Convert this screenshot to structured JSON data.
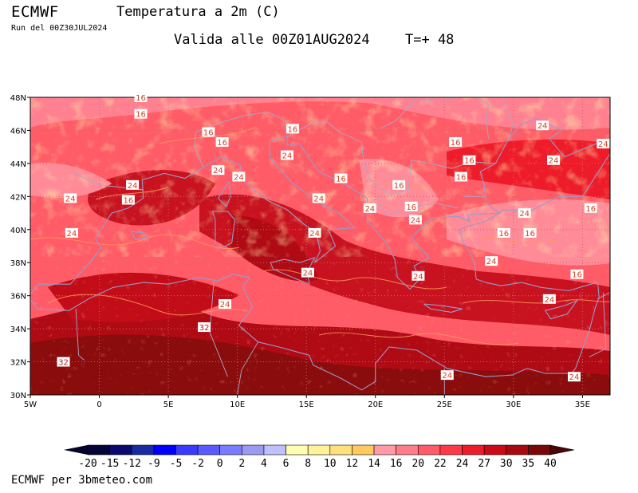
{
  "header": {
    "model": "ECMWF",
    "product": "Temperatura a 2m (C)",
    "run": "Run del 00Z30JUL2024",
    "valid": "Valida alle 00Z01AUG2024",
    "step": "T=+ 48"
  },
  "map": {
    "lat_labels": [
      "48N",
      "46N",
      "44N",
      "42N",
      "40N",
      "38N",
      "36N",
      "34N",
      "32N",
      "30N"
    ],
    "lon_labels": [
      "5W",
      "0",
      "5E",
      "10E",
      "15E",
      "20E",
      "25E",
      "30E",
      "35E"
    ],
    "lat_range": [
      30,
      48
    ],
    "lon_range": [
      -5,
      37
    ],
    "grid": "dotted",
    "contour_labels": [
      {
        "text": "16",
        "lon": 3.0,
        "lat": 48.0
      },
      {
        "text": "16",
        "lon": 3.0,
        "lat": 47.0
      },
      {
        "text": "16",
        "lon": 7.9,
        "lat": 45.9
      },
      {
        "text": "16",
        "lon": 8.9,
        "lat": 45.3
      },
      {
        "text": "16",
        "lon": 14.0,
        "lat": 46.1
      },
      {
        "text": "24",
        "lon": 13.6,
        "lat": 44.5
      },
      {
        "text": "24",
        "lon": 8.6,
        "lat": 43.6
      },
      {
        "text": "24",
        "lon": 10.1,
        "lat": 43.2
      },
      {
        "text": "24",
        "lon": 2.4,
        "lat": 42.7
      },
      {
        "text": "16",
        "lon": 2.1,
        "lat": 41.8
      },
      {
        "text": "24",
        "lon": -2.1,
        "lat": 41.9
      },
      {
        "text": "24",
        "lon": -2.0,
        "lat": 39.8
      },
      {
        "text": "16",
        "lon": 17.5,
        "lat": 43.1
      },
      {
        "text": "24",
        "lon": 15.9,
        "lat": 41.9
      },
      {
        "text": "24",
        "lon": 15.6,
        "lat": 39.8
      },
      {
        "text": "24",
        "lon": 15.1,
        "lat": 37.4
      },
      {
        "text": "24",
        "lon": 19.6,
        "lat": 41.3
      },
      {
        "text": "16",
        "lon": 21.7,
        "lat": 42.7
      },
      {
        "text": "16",
        "lon": 22.6,
        "lat": 41.4
      },
      {
        "text": "16",
        "lon": 25.8,
        "lat": 45.3
      },
      {
        "text": "16",
        "lon": 26.2,
        "lat": 43.2
      },
      {
        "text": "16",
        "lon": 26.8,
        "lat": 44.2
      },
      {
        "text": "24",
        "lon": 22.9,
        "lat": 40.6
      },
      {
        "text": "24",
        "lon": 28.4,
        "lat": 38.1
      },
      {
        "text": "24",
        "lon": 23.1,
        "lat": 37.2
      },
      {
        "text": "24",
        "lon": 32.1,
        "lat": 46.3
      },
      {
        "text": "24",
        "lon": 36.5,
        "lat": 45.2
      },
      {
        "text": "24",
        "lon": 32.9,
        "lat": 44.2
      },
      {
        "text": "24",
        "lon": 30.8,
        "lat": 41.0
      },
      {
        "text": "16",
        "lon": 29.3,
        "lat": 39.8
      },
      {
        "text": "16",
        "lon": 31.2,
        "lat": 39.8
      },
      {
        "text": "16",
        "lon": 35.6,
        "lat": 41.3
      },
      {
        "text": "16",
        "lon": 34.6,
        "lat": 37.3
      },
      {
        "text": "24",
        "lon": 32.6,
        "lat": 35.8
      },
      {
        "text": "24",
        "lon": 9.1,
        "lat": 35.5
      },
      {
        "text": "32",
        "lon": 7.6,
        "lat": 34.1
      },
      {
        "text": "32",
        "lon": -2.6,
        "lat": 32.0
      },
      {
        "text": "24",
        "lon": 25.2,
        "lat": 31.2
      },
      {
        "text": "24",
        "lon": 34.4,
        "lat": 31.1
      }
    ],
    "coastlines": [
      [
        [
          -5,
          36.1
        ],
        [
          -4.4,
          36.7
        ],
        [
          -2.1,
          36.7
        ],
        [
          -0.5,
          38.2
        ],
        [
          0.1,
          38.9
        ],
        [
          -0.3,
          39.5
        ],
        [
          0.9,
          41.0
        ],
        [
          2.1,
          41.3
        ],
        [
          3.2,
          41.9
        ],
        [
          3.1,
          43.0
        ],
        [
          4.7,
          43.4
        ],
        [
          6.2,
          43.1
        ],
        [
          7.4,
          43.7
        ],
        [
          8.8,
          44.4
        ],
        [
          10.2,
          43.9
        ],
        [
          10.5,
          42.9
        ],
        [
          12.1,
          41.8
        ],
        [
          13.6,
          41.2
        ],
        [
          15.0,
          40.2
        ],
        [
          15.7,
          39.9
        ],
        [
          16.0,
          38.7
        ],
        [
          15.6,
          38.0
        ],
        [
          16.2,
          38.4
        ],
        [
          17.1,
          39.0
        ],
        [
          16.6,
          40.0
        ],
        [
          18.5,
          40.1
        ],
        [
          17.5,
          40.9
        ],
        [
          16.0,
          41.6
        ],
        [
          14.0,
          42.8
        ],
        [
          12.4,
          44.3
        ],
        [
          12.3,
          45.3
        ],
        [
          13.6,
          45.7
        ],
        [
          13.6,
          45.1
        ],
        [
          14.5,
          45.2
        ],
        [
          15.9,
          43.5
        ],
        [
          17.9,
          42.7
        ],
        [
          19.4,
          41.9
        ],
        [
          19.4,
          40.5
        ],
        [
          20.7,
          39.3
        ],
        [
          21.4,
          38.2
        ],
        [
          21.6,
          37.1
        ],
        [
          22.5,
          36.4
        ],
        [
          23.2,
          37.0
        ],
        [
          22.8,
          37.8
        ],
        [
          23.9,
          38.3
        ],
        [
          22.6,
          39.5
        ],
        [
          23.4,
          40.2
        ],
        [
          24.0,
          40.7
        ],
        [
          26.0,
          40.8
        ],
        [
          26.8,
          40.5
        ],
        [
          26.7,
          40.9
        ],
        [
          29.0,
          41.0
        ],
        [
          28.0,
          41.6
        ],
        [
          27.9,
          42.7
        ],
        [
          27.6,
          43.5
        ],
        [
          28.7,
          44.0
        ],
        [
          29.6,
          45.4
        ],
        [
          30.6,
          46.4
        ],
        [
          31.7,
          46.7
        ],
        [
          33.5,
          46.0
        ],
        [
          32.6,
          45.5
        ],
        [
          33.7,
          44.4
        ],
        [
          35.4,
          45.0
        ],
        [
          36.3,
          45.3
        ],
        [
          37.0,
          45.5
        ]
      ],
      [
        [
          37.0,
          44.6
        ],
        [
          35.0,
          42.0
        ],
        [
          33.3,
          42.0
        ],
        [
          31.2,
          41.1
        ],
        [
          29.2,
          41.2
        ],
        [
          29.0,
          41.0
        ],
        [
          28.0,
          40.5
        ],
        [
          26.7,
          40.2
        ],
        [
          26.1,
          40.0
        ],
        [
          26.3,
          39.3
        ],
        [
          26.8,
          38.7
        ],
        [
          27.2,
          37.9
        ],
        [
          27.3,
          37.0
        ],
        [
          28.0,
          36.8
        ],
        [
          29.1,
          36.6
        ],
        [
          30.6,
          36.8
        ],
        [
          32.0,
          36.5
        ],
        [
          34.0,
          36.3
        ],
        [
          35.2,
          36.6
        ],
        [
          36.1,
          36.8
        ],
        [
          36.2,
          35.9
        ],
        [
          35.9,
          35.2
        ],
        [
          35.5,
          33.9
        ],
        [
          35.1,
          33.0
        ],
        [
          34.5,
          31.6
        ],
        [
          34.2,
          31.3
        ],
        [
          32.3,
          31.3
        ],
        [
          31.0,
          31.6
        ],
        [
          29.9,
          31.2
        ],
        [
          28.0,
          31.1
        ],
        [
          25.2,
          31.6
        ],
        [
          23.0,
          32.7
        ],
        [
          21.0,
          32.9
        ],
        [
          20.0,
          31.9
        ],
        [
          20.0,
          30.8
        ],
        [
          19.0,
          30.3
        ],
        [
          17.5,
          31.0
        ],
        [
          15.5,
          31.8
        ],
        [
          15.2,
          32.4
        ],
        [
          13.0,
          32.9
        ],
        [
          11.5,
          33.2
        ],
        [
          10.8,
          33.7
        ],
        [
          10.1,
          34.2
        ],
        [
          11.1,
          35.3
        ],
        [
          10.4,
          36.5
        ],
        [
          10.9,
          37.1
        ],
        [
          9.7,
          37.3
        ],
        [
          8.6,
          36.9
        ],
        [
          7.2,
          37.1
        ],
        [
          5.0,
          36.7
        ],
        [
          3.2,
          36.8
        ],
        [
          1.0,
          36.5
        ],
        [
          -0.8,
          35.8
        ],
        [
          -2.2,
          35.1
        ],
        [
          -4.5,
          35.2
        ],
        [
          -5,
          35.8
        ]
      ],
      [
        [
          12.4,
          38.0
        ],
        [
          13.4,
          38.2
        ],
        [
          14.5,
          38.0
        ],
        [
          15.6,
          38.3
        ],
        [
          15.1,
          37.5
        ],
        [
          15.2,
          36.7
        ],
        [
          14.3,
          37.0
        ],
        [
          12.6,
          37.6
        ],
        [
          12.4,
          38.0
        ]
      ],
      [
        [
          8.2,
          41.1
        ],
        [
          9.3,
          41.1
        ],
        [
          9.8,
          40.6
        ],
        [
          9.6,
          39.2
        ],
        [
          8.9,
          38.9
        ],
        [
          8.4,
          39.2
        ],
        [
          8.4,
          40.6
        ],
        [
          8.2,
          41.1
        ]
      ],
      [
        [
          8.6,
          41.9
        ],
        [
          9.4,
          42.9
        ],
        [
          9.5,
          42.0
        ],
        [
          9.2,
          41.4
        ],
        [
          8.6,
          41.9
        ]
      ],
      [
        [
          2.3,
          39.9
        ],
        [
          3.2,
          39.8
        ],
        [
          3.5,
          39.5
        ],
        [
          2.6,
          39.4
        ],
        [
          2.3,
          39.9
        ]
      ],
      [
        [
          23.5,
          35.5
        ],
        [
          24.8,
          35.4
        ],
        [
          26.3,
          35.2
        ],
        [
          25.5,
          35.0
        ],
        [
          24.0,
          35.2
        ],
        [
          23.5,
          35.5
        ]
      ],
      [
        [
          32.3,
          35.1
        ],
        [
          33.7,
          35.4
        ],
        [
          34.6,
          35.7
        ],
        [
          33.9,
          34.9
        ],
        [
          32.7,
          34.6
        ],
        [
          32.3,
          35.1
        ]
      ]
    ],
    "borders": [
      [
        [
          -1.8,
          43.4
        ],
        [
          0.0,
          42.7
        ],
        [
          3.2,
          42.4
        ]
      ],
      [
        [
          7.5,
          43.8
        ],
        [
          6.9,
          45.0
        ],
        [
          7.0,
          45.9
        ],
        [
          8.5,
          46.4
        ],
        [
          10.5,
          46.9
        ],
        [
          12.2,
          47.1
        ],
        [
          13.7,
          46.5
        ]
      ],
      [
        [
          13.6,
          45.6
        ],
        [
          15.5,
          46.5
        ],
        [
          16.5,
          46.5
        ],
        [
          17.4,
          45.9
        ],
        [
          19.0,
          45.3
        ],
        [
          19.1,
          44.4
        ],
        [
          19.6,
          43.0
        ],
        [
          20.3,
          42.6
        ],
        [
          21.0,
          42.1
        ],
        [
          22.4,
          42.4
        ],
        [
          22.6,
          44.2
        ],
        [
          24.0,
          44.0
        ],
        [
          25.5,
          43.7
        ],
        [
          27.0,
          44.1
        ],
        [
          28.7,
          44.0
        ]
      ],
      [
        [
          20.1,
          41.9
        ],
        [
          20.8,
          40.9
        ],
        [
          22.0,
          41.1
        ],
        [
          23.0,
          41.4
        ],
        [
          24.3,
          41.6
        ],
        [
          26.0,
          41.3
        ]
      ],
      [
        [
          26.4,
          42.0
        ],
        [
          28.0,
          42.0
        ]
      ],
      [
        [
          20.3,
          46.1
        ],
        [
          21.5,
          46.6
        ],
        [
          22.9,
          47.9
        ],
        [
          24.9,
          47.7
        ],
        [
          26.6,
          48.3
        ]
      ],
      [
        [
          26.6,
          48.3
        ],
        [
          28.2,
          47.6
        ],
        [
          28.0,
          46.7
        ],
        [
          28.2,
          45.5
        ]
      ],
      [
        [
          29.2,
          47.8
        ],
        [
          30.0,
          46.4
        ],
        [
          29.6,
          45.4
        ]
      ],
      [
        [
          -1.7,
          35.2
        ],
        [
          -1.5,
          32.4
        ],
        [
          -1.1,
          32.1
        ]
      ],
      [
        [
          8.3,
          36.9
        ],
        [
          8.0,
          33.8
        ],
        [
          9.3,
          31.1
        ]
      ],
      [
        [
          11.5,
          33.2
        ],
        [
          10.3,
          31.5
        ],
        [
          10.0,
          30.0
        ]
      ],
      [
        [
          25.0,
          31.6
        ],
        [
          25.0,
          30.0
        ]
      ],
      [
        [
          36.5,
          36.2
        ],
        [
          36.7,
          32.8
        ],
        [
          35.5,
          32.3
        ]
      ],
      [
        [
          36.1,
          35.8
        ],
        [
          37.0,
          36.2
        ]
      ]
    ]
  },
  "legend": {
    "tick_labels": [
      "-20",
      "-15",
      "-12",
      "-9",
      "-5",
      "-2",
      "0",
      "2",
      "4",
      "6",
      "8",
      "10",
      "12",
      "14",
      "16",
      "20",
      "22",
      "24",
      "27",
      "30",
      "35",
      "40"
    ],
    "colors": [
      "#050535",
      "#0a0a6e",
      "#1a2aa0",
      "#0000ff",
      "#3a3aff",
      "#5a5aff",
      "#7b7bff",
      "#9a9af0",
      "#c0c0ff",
      "#ffffb0",
      "#fff29a",
      "#ffe07a",
      "#ffc860",
      "#ff9aa8",
      "#ff7c88",
      "#ff5c68",
      "#ff3a48",
      "#ee1c2a",
      "#cc0a15",
      "#a80810",
      "#7a0808"
    ]
  },
  "footer": {
    "credit": "ECMWF per 3bmeteo.com"
  }
}
